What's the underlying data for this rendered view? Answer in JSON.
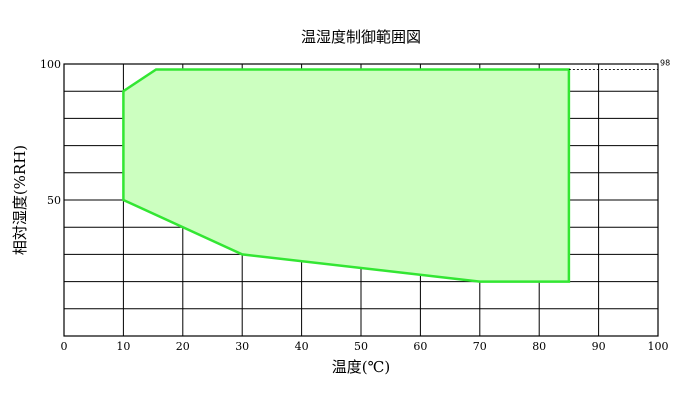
{
  "chart_data": {
    "type": "area",
    "title": "温湿度制御範囲図",
    "xlabel": "温度(℃)",
    "ylabel": "相対湿度(%RH)",
    "xlim": [
      0,
      100
    ],
    "ylim": [
      0,
      100
    ],
    "x_ticks": [
      0,
      10,
      20,
      30,
      40,
      50,
      60,
      70,
      80,
      90,
      100
    ],
    "y_tick_labels": [
      {
        "value": 50,
        "label": "50"
      },
      {
        "value": 100,
        "label": "100"
      }
    ],
    "grid": true,
    "fill_color": "#ccffc0",
    "line_color": "#33e633",
    "region": [
      {
        "x": 10,
        "y": 90
      },
      {
        "x": 15.5,
        "y": 98
      },
      {
        "x": 85,
        "y": 98
      },
      {
        "x": 85,
        "y": 20
      },
      {
        "x": 70,
        "y": 20
      },
      {
        "x": 30,
        "y": 30
      },
      {
        "x": 10,
        "y": 50
      }
    ],
    "reference_line": {
      "y": 98,
      "from_x": 85,
      "to_x": 100,
      "label": "98"
    }
  }
}
